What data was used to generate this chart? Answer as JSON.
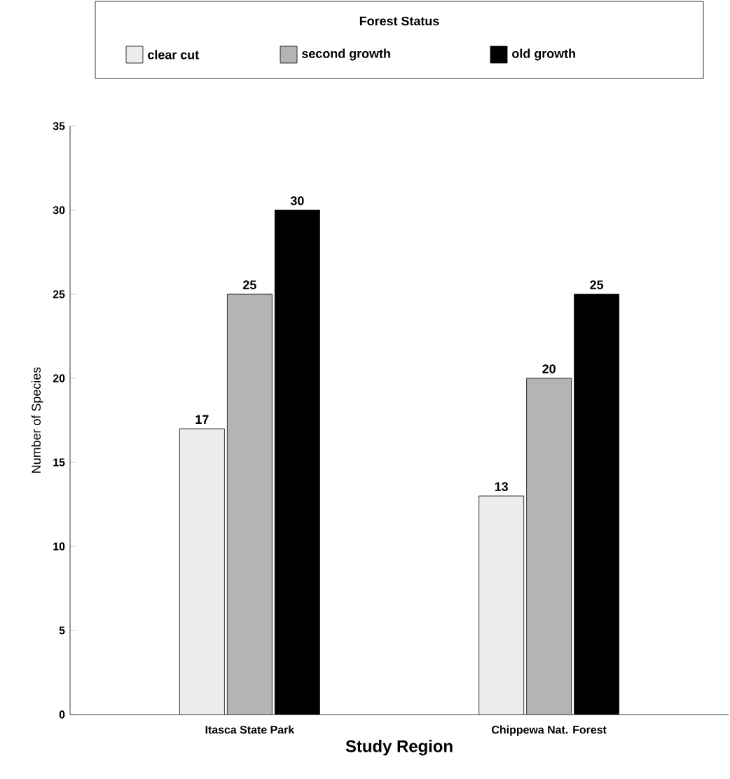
{
  "chart_data": {
    "type": "bar",
    "legend_title": "Forest Status",
    "xlabel": "Study Region",
    "ylabel": "Number of Species",
    "categories": [
      "Itasca State Park",
      "Chippewa Nat. Forest"
    ],
    "series": [
      {
        "name": "clear cut",
        "color": "#ececec",
        "values": [
          17,
          13
        ]
      },
      {
        "name": "second growth",
        "color": "#b4b4b4",
        "values": [
          25,
          20
        ]
      },
      {
        "name": "old growth",
        "color": "#000000",
        "values": [
          30,
          25
        ]
      }
    ],
    "ylim": [
      0,
      35
    ],
    "yticks": [
      0,
      5,
      10,
      15,
      20,
      25,
      30,
      35
    ],
    "data_labels": true,
    "legend": "top"
  }
}
